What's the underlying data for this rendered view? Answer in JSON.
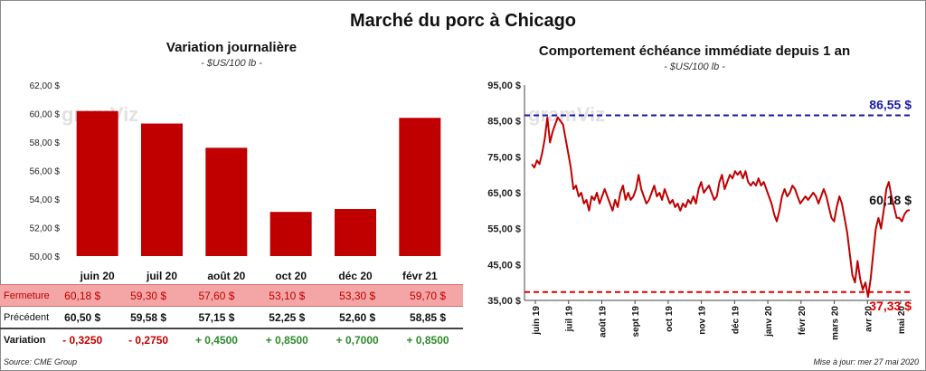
{
  "title": "Marché du porc à Chicago",
  "left": {
    "title": "Variation  journalière",
    "subtitle": "- $US/100 lb -",
    "yticks": [
      "62,00 $",
      "60,00 $",
      "58,00 $",
      "56,00 $",
      "54,00 $",
      "52,00 $",
      "50,00 $"
    ],
    "table": {
      "close_label": "Fermeture",
      "prev_label": "Précédent",
      "var_label": "Variation",
      "close": [
        "60,18  $",
        "59,30  $",
        "57,60  $",
        "53,10  $",
        "53,30  $",
        "59,70  $"
      ],
      "prev": [
        "60,50  $",
        "59,58  $",
        "57,15  $",
        "52,25  $",
        "52,60  $",
        "58,85  $"
      ],
      "var": [
        "- 0,3250",
        "- 0,2750",
        "+ 0,4500",
        "+ 0,8500",
        "+ 0,7000",
        "+ 0,8500"
      ]
    }
  },
  "right": {
    "title": "Comportement  échéance immédiate depuis 1 an",
    "subtitle": "- $US/100 lb -",
    "high_label": "86,55 $",
    "low_label": "37,33 $",
    "last_label": "60,18 $",
    "yticks": [
      "95,00 $",
      "85,00 $",
      "75,00 $",
      "65,00 $",
      "55,00 $",
      "45,00 $",
      "35,00 $"
    ],
    "xticks": [
      "juin 19",
      "juil 19",
      "août 19",
      "sept 19",
      "oct 19",
      "nov 19",
      "déc 19",
      "janv 20",
      "févr 20",
      "mars 20",
      "avr 20",
      "mai 20"
    ]
  },
  "watermark": "gramViz",
  "source": "Source: CME Group",
  "update": "Mise à jour: mer 27 mai 2020",
  "colors": {
    "bar": "#c00000",
    "line": "#c00000",
    "high": "#1a1aa8",
    "low": "#e00000"
  },
  "chart_data": [
    {
      "type": "bar",
      "title": "Variation  journalière",
      "categories": [
        "juin 20",
        "juil 20",
        "août 20",
        "oct 20",
        "déc 20",
        "févr 21"
      ],
      "values": [
        60.18,
        59.3,
        57.6,
        53.1,
        53.3,
        59.7
      ],
      "ylim": [
        50,
        62
      ],
      "ylabel": "$US/100 lb"
    },
    {
      "type": "line",
      "title": "Comportement  échéance immédiate depuis 1 an",
      "ylim": [
        35,
        95
      ],
      "ylabel": "$US/100 lb",
      "reference_lines": [
        {
          "label": "86,55 $",
          "value": 86.55
        },
        {
          "label": "37,33 $",
          "value": 37.33
        }
      ],
      "x_start": "juin 19",
      "x_end": "mai 20",
      "values": [
        73,
        72,
        74,
        73,
        76,
        80,
        86,
        79,
        82,
        84,
        86,
        85,
        84,
        80,
        76,
        72,
        66,
        67,
        64,
        65,
        62,
        63,
        60,
        64,
        63,
        65,
        62,
        64,
        66,
        64,
        62,
        60,
        63,
        61,
        65,
        67,
        63,
        65,
        63,
        64,
        66,
        70,
        66,
        64,
        62,
        63,
        65,
        67,
        64,
        65,
        63,
        66,
        64,
        62,
        63,
        61,
        62,
        60,
        62,
        61,
        63,
        62,
        64,
        62,
        66,
        68,
        65,
        66,
        67,
        65,
        63,
        64,
        68,
        70,
        66,
        68,
        70,
        69,
        71,
        70,
        71,
        69,
        71,
        68,
        67,
        68,
        67,
        69,
        67,
        68,
        66,
        64,
        62,
        59,
        57,
        60,
        64,
        66,
        64,
        65,
        67,
        66,
        64,
        62,
        63,
        64,
        63,
        64,
        65,
        64,
        62,
        64,
        66,
        64,
        61,
        58,
        57,
        61,
        64,
        62,
        58,
        54,
        48,
        42,
        40,
        46,
        41,
        38,
        40,
        36,
        41,
        48,
        55,
        58,
        55,
        60,
        66,
        68,
        64,
        61,
        58,
        58,
        57,
        59,
        60,
        60.18
      ]
    }
  ]
}
